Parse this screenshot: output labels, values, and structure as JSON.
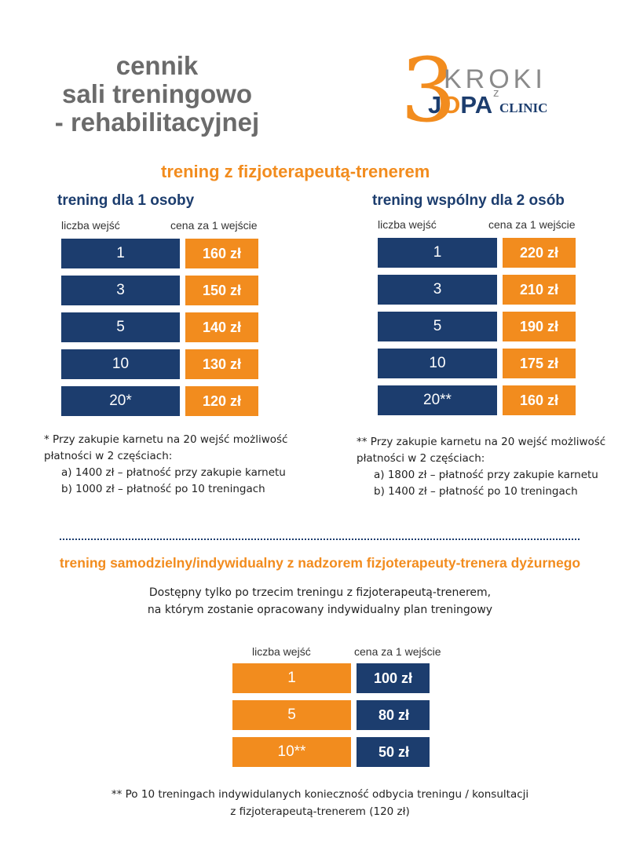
{
  "title": {
    "line1": "cennik",
    "line2": "sali treningowo",
    "line3": "- rehabilitacyjnej"
  },
  "logo": {
    "three": "3",
    "kroki": "KROKI",
    "z": "z",
    "jopa_j": "J",
    "jopa_o": "O",
    "jopa_pa": "PA",
    "clinic": "CLINIC"
  },
  "section1": {
    "heading": "trening z fizjoterapeutą-trenerem",
    "left": {
      "heading": "trening dla 1 osoby",
      "col_entries": "liczba wejść",
      "col_price": "cena za 1 wejście",
      "rows": [
        {
          "entries": "1",
          "price": "160 zł"
        },
        {
          "entries": "3",
          "price": "150 zł"
        },
        {
          "entries": "5",
          "price": "140 zł"
        },
        {
          "entries": "10",
          "price": "130 zł"
        },
        {
          "entries": "20*",
          "price": "120 zł"
        }
      ],
      "note_intro": "*  Przy zakupie karnetu na 20 wejść  możliwość płatności w 2 częściach:",
      "note_a": "a)   1400 zł – płatność przy zakupie karnetu",
      "note_b": "b)   1000 zł – płatność po 10 treningach"
    },
    "right": {
      "heading": "trening wspólny dla 2 osób",
      "col_entries": "liczba wejść",
      "col_price": "cena za 1 wejście",
      "rows": [
        {
          "entries": "1",
          "price": "220 zł"
        },
        {
          "entries": "3",
          "price": "210 zł"
        },
        {
          "entries": "5",
          "price": "190 zł"
        },
        {
          "entries": "10",
          "price": "175 zł"
        },
        {
          "entries": "20**",
          "price": "160 zł"
        }
      ],
      "note_intro": "**  Przy zakupie karnetu na 20 wejść możliwość płatności w 2 częściach:",
      "note_a": "a)   1800 zł – płatność przy zakupie karnetu",
      "note_b": "b)   1400 zł – płatność po 10 treningach"
    }
  },
  "section2": {
    "heading": "trening samodzielny/indywidualny z nadzorem fizjoterapeuty-trenera dyżurnego",
    "desc_line1": "Dostępny tylko po trzecim treningu z fizjoterapeutą-trenerem,",
    "desc_line2": "na którym zostanie opracowany indywidualny plan treningowy",
    "col_entries": "liczba wejść",
    "col_price": "cena za 1 wejście",
    "rows": [
      {
        "entries": "1",
        "price": "100 zł"
      },
      {
        "entries": "5",
        "price": "80 zł"
      },
      {
        "entries": "10**",
        "price": "50 zł"
      }
    ],
    "note_line1": "** Po 10 treningach indywidulanych  konieczność odbycia treningu / konsultacji",
    "note_line2": "z fizjoterapeutą-trenerem  (120 zł)"
  }
}
